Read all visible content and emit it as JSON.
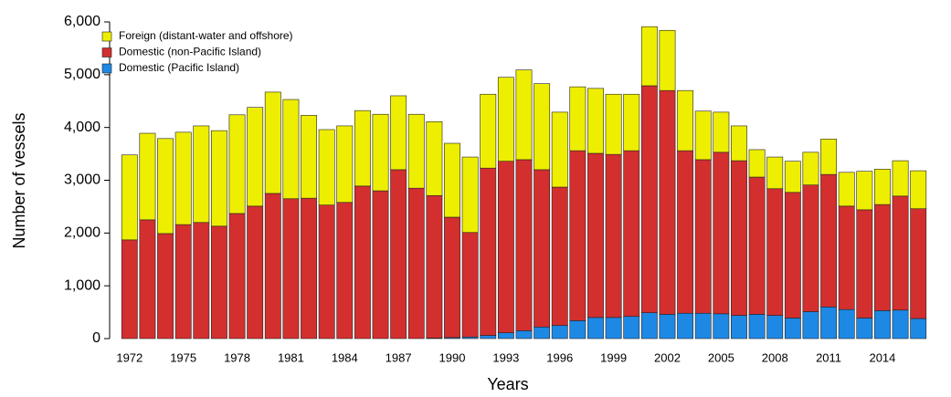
{
  "chart_data": {
    "type": "stacked_bar",
    "x_label": "Years",
    "y_label": "Number of vessels",
    "categories": [
      "1972",
      null,
      null,
      "1975",
      null,
      null,
      "1978",
      null,
      null,
      "1981",
      null,
      null,
      "1984",
      null,
      null,
      "1987",
      null,
      null,
      "1990",
      null,
      null,
      "1993",
      null,
      null,
      "1996",
      null,
      null,
      "1999",
      null,
      null,
      "2002",
      null,
      null,
      "2005",
      null,
      null,
      "2008",
      null,
      null,
      "2011",
      null,
      null,
      "2014",
      null,
      null
    ],
    "series": [
      {
        "name": "Domestic (Pacific Island)",
        "color": "#1e88e5",
        "values": [
          0,
          0,
          0,
          0,
          0,
          0,
          0,
          0,
          0,
          0,
          0,
          0,
          0,
          0,
          0,
          0,
          0,
          10,
          20,
          30,
          60,
          110,
          150,
          220,
          250,
          340,
          400,
          400,
          420,
          490,
          460,
          480,
          480,
          470,
          440,
          460,
          440,
          390,
          510,
          600,
          550,
          390,
          530,
          540,
          380
        ]
      },
      {
        "name": "Domestic (non-Pacific Island)",
        "color": "#d32f2f",
        "values": [
          1870,
          2250,
          1990,
          2160,
          2200,
          2130,
          2370,
          2510,
          2750,
          2650,
          2660,
          2530,
          2580,
          2890,
          2800,
          3200,
          2850,
          2700,
          2280,
          1980,
          3170,
          3250,
          3240,
          2980,
          2620,
          3220,
          3110,
          3090,
          3140,
          4300,
          4240,
          3080,
          2910,
          3060,
          2930,
          2600,
          2400,
          2380,
          2400,
          2510,
          1960,
          2050,
          2010,
          2160,
          2080
        ]
      },
      {
        "name": "Foreign (distant-water and offshore)",
        "color": "#eeee00",
        "values": [
          1610,
          1640,
          1800,
          1750,
          1830,
          1810,
          1870,
          1870,
          1920,
          1880,
          1570,
          1430,
          1450,
          1430,
          1450,
          1400,
          1400,
          1400,
          1400,
          1430,
          1400,
          1590,
          1700,
          1630,
          1420,
          1210,
          1230,
          1140,
          1070,
          1120,
          1140,
          1140,
          920,
          760,
          660,
          520,
          600,
          590,
          620,
          670,
          640,
          730,
          670,
          670,
          720
        ]
      }
    ],
    "ylim": [
      0,
      6000
    ],
    "yticks": [
      0,
      {
        "value": 1000,
        "label": "1,000"
      },
      {
        "value": 2000,
        "label": "2,000"
      },
      {
        "value": 3000,
        "label": "3,000"
      },
      {
        "value": 4000,
        "label": "4,000"
      },
      {
        "value": 5000,
        "label": "5,000"
      },
      {
        "value": 6000,
        "label": "6,000"
      }
    ],
    "legend": "top-left"
  }
}
